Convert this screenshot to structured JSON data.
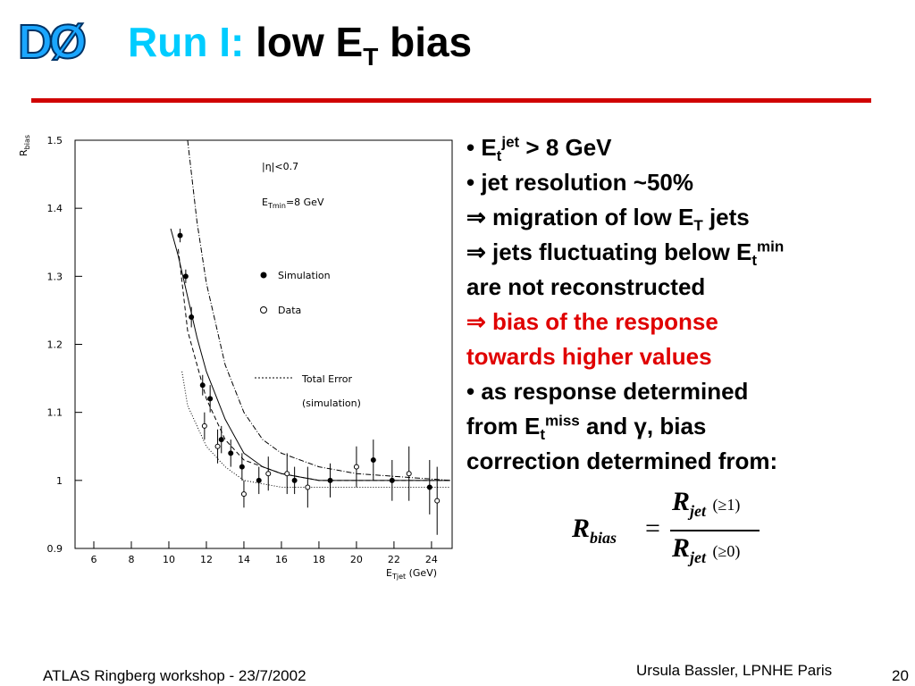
{
  "logo": "DØ",
  "title": {
    "prefix": "Run I:",
    "main": "low E",
    "sub": "T",
    "end": " bias"
  },
  "bullets": [
    [
      "• E",
      "t",
      "jet",
      " > 8 GeV"
    ],
    [
      "• jet resolution ~50%"
    ],
    [
      "⇒ migration of low E",
      "T",
      " jets"
    ],
    [
      "⇒ jets fluctuating below E",
      "t",
      "min"
    ],
    [
      "are not reconstructed"
    ],
    [
      "⇒ bias of the response"
    ],
    [
      "towards higher values"
    ],
    [
      "• as response determined"
    ],
    [
      "from E",
      "t",
      "miss",
      " and γ, bias"
    ],
    [
      "correction determined from:"
    ]
  ],
  "formula": {
    "lhs": "R",
    "lhs_sub": "bias",
    "eq": "=",
    "num": "R",
    "num_sub": "jet",
    "num_arg": "(≥1)",
    "den": "R",
    "den_sub": "jet",
    "den_arg": "(≥0)"
  },
  "footer": {
    "left": "ATLAS Ringberg workshop - 23/7/2002",
    "author": "Ursula Bassler, LPNHE Paris",
    "page": "20"
  },
  "plot": {
    "ylabel": {
      "main": "R",
      "sub": "bias"
    },
    "xlabel": {
      "main": "E",
      "sub": "Tjet",
      "end": " (GeV)"
    },
    "cut": "|η|<0.7",
    "threshold": {
      "main": "E",
      "sub": "Tmin",
      "end": "=8 GeV"
    },
    "legend": {
      "simulation": "Simulation",
      "data": "Data",
      "error": "Total Error",
      "error_note": "(simulation)"
    },
    "xlim": [
      5,
      25.1
    ],
    "ylim": [
      0.9,
      1.5
    ],
    "xticks": [
      6,
      8,
      10,
      12,
      14,
      16,
      18,
      20,
      22,
      24
    ],
    "yticks": [
      0.9,
      1,
      1.1,
      1.2,
      1.3,
      1.4,
      1.5
    ],
    "simulation": {
      "x": [
        10.6,
        10.9,
        11.2,
        11.8,
        12.2,
        12.8,
        13.3,
        13.9,
        14.8,
        16.7,
        18.6,
        20.9,
        21.9,
        23.9
      ],
      "y": [
        1.36,
        1.3,
        1.24,
        1.14,
        1.12,
        1.06,
        1.04,
        1.02,
        1.0,
        1.0,
        1.0,
        1.03,
        1.0,
        0.99
      ],
      "err": [
        0.01,
        0.01,
        0.015,
        0.015,
        0.02,
        0.02,
        0.02,
        0.02,
        0.02,
        0.02,
        0.025,
        0.03,
        0.03,
        0.04
      ]
    },
    "data": {
      "x": [
        11.9,
        12.6,
        14.0,
        15.3,
        16.3,
        17.4,
        20.0,
        22.8,
        24.3
      ],
      "y": [
        1.08,
        1.05,
        0.98,
        1.01,
        1.01,
        0.99,
        1.02,
        1.01,
        0.97
      ],
      "err": [
        0.02,
        0.025,
        0.02,
        0.025,
        0.03,
        0.03,
        0.03,
        0.04,
        0.05
      ]
    },
    "fit": {
      "x": [
        10.1,
        10.5,
        11,
        11.5,
        12,
        13,
        14,
        15,
        16,
        18,
        20,
        25
      ],
      "y": [
        1.37,
        1.33,
        1.27,
        1.21,
        1.16,
        1.09,
        1.04,
        1.02,
        1.01,
        1.0,
        1.0,
        1.0
      ]
    },
    "upper": {
      "x": [
        11,
        11.5,
        12,
        13,
        14,
        15,
        16,
        18,
        20,
        25
      ],
      "y": [
        1.5,
        1.38,
        1.29,
        1.17,
        1.1,
        1.06,
        1.04,
        1.02,
        1.01,
        1.0
      ]
    },
    "lower": {
      "x": [
        10.5,
        11,
        12,
        13,
        14,
        16,
        18,
        20,
        25
      ],
      "y": [
        1.34,
        1.22,
        1.12,
        1.06,
        1.03,
        1.01,
        1.0,
        1.0,
        1.0
      ]
    },
    "bottom": {
      "x": [
        10.7,
        11,
        12,
        13,
        14,
        16,
        20,
        25
      ],
      "y": [
        1.16,
        1.11,
        1.05,
        1.02,
        1.0,
        0.99,
        0.99,
        0.99
      ]
    }
  }
}
